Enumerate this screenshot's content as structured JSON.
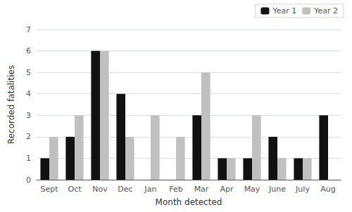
{
  "chart_data": {
    "type": "bar",
    "categories": [
      "Sept",
      "Oct",
      "Nov",
      "Dec",
      "Jan",
      "Feb",
      "Mar",
      "Apr",
      "May",
      "June",
      "July",
      "Aug"
    ],
    "series": [
      {
        "name": "Year 1",
        "color": "#111111",
        "values": [
          1,
          2,
          6,
          4,
          0,
          0,
          3,
          1,
          1,
          2,
          1,
          3
        ]
      },
      {
        "name": "Year 2",
        "color": "#c0c0c0",
        "values": [
          2,
          3,
          6,
          2,
          3,
          2,
          5,
          1,
          3,
          1,
          1,
          0
        ]
      }
    ],
    "xlabel": "Month detected",
    "ylabel": "Recorded fatalities",
    "ylim": [
      0,
      7
    ],
    "yticks": [
      0,
      1,
      2,
      3,
      4,
      5,
      6,
      7
    ],
    "grid": true,
    "legend": "upper right"
  }
}
